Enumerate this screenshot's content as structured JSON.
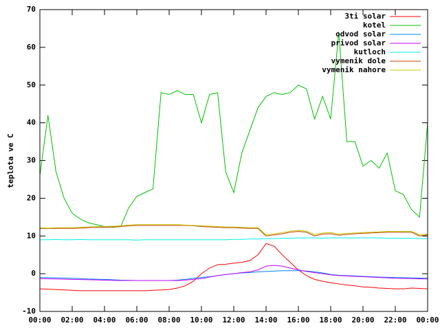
{
  "chart_data": {
    "type": "line",
    "y_label": "teplota ve C",
    "legend": "top-right",
    "grid": false,
    "xlim": [
      0,
      24
    ],
    "xticks": [
      {
        "value": 0,
        "label": "00:00"
      },
      {
        "value": 2,
        "label": "02:00"
      },
      {
        "value": 4,
        "label": "04:00"
      },
      {
        "value": 6,
        "label": "06:00"
      },
      {
        "value": 8,
        "label": "08:00"
      },
      {
        "value": 10,
        "label": "10:00"
      },
      {
        "value": 12,
        "label": "12:00"
      },
      {
        "value": 14,
        "label": "14:00"
      },
      {
        "value": 16,
        "label": "16:00"
      },
      {
        "value": 18,
        "label": "18:00"
      },
      {
        "value": 20,
        "label": "20:00"
      },
      {
        "value": 22,
        "label": "22:00"
      },
      {
        "value": 24,
        "label": "00:00"
      }
    ],
    "ylim": [
      -10,
      70
    ],
    "yticks": [
      -10,
      0,
      10,
      20,
      30,
      40,
      50,
      60,
      70
    ],
    "x": [
      0,
      0.5,
      1,
      1.5,
      2,
      2.5,
      3,
      3.5,
      4,
      4.5,
      5,
      5.5,
      6,
      6.5,
      7,
      7.5,
      8,
      8.5,
      9,
      9.5,
      10,
      10.5,
      11,
      11.5,
      12,
      12.5,
      13,
      13.5,
      14,
      14.5,
      15,
      15.5,
      16,
      16.5,
      17,
      17.5,
      18,
      18.5,
      19,
      19.5,
      20,
      20.5,
      21,
      21.5,
      22,
      22.5,
      23,
      23.5,
      24
    ],
    "series": [
      {
        "name": "3ti solar",
        "color": "#ff0000",
        "values": [
          -4,
          -4.1,
          -4.2,
          -4.3,
          -4.4,
          -4.5,
          -4.5,
          -4.5,
          -4.5,
          -4.5,
          -4.5,
          -4.5,
          -4.5,
          -4.5,
          -4.4,
          -4.3,
          -4.2,
          -3.8,
          -3.2,
          -2,
          0,
          1.5,
          2.4,
          2.5,
          2.8,
          3,
          3.5,
          5,
          8,
          7.3,
          5,
          3,
          1,
          -0.5,
          -1.5,
          -2,
          -2.4,
          -2.7,
          -3,
          -3.2,
          -3.5,
          -3.6,
          -3.8,
          -3.9,
          -4,
          -4,
          -3.8,
          -3.9,
          -4
        ]
      },
      {
        "name": "kotel",
        "color": "#00c000",
        "values": [
          26,
          42,
          27,
          20,
          16,
          14.5,
          13.5,
          13,
          12.5,
          12.3,
          12.5,
          17.5,
          20.5,
          21.5,
          22.5,
          48,
          47.5,
          48.5,
          47.5,
          47.5,
          40,
          47.5,
          48,
          27,
          21.5,
          32,
          38,
          44,
          47,
          48,
          47.5,
          48,
          50,
          49,
          41,
          47,
          41,
          64,
          35,
          35,
          28.5,
          30,
          28,
          32,
          22,
          21,
          17,
          15,
          40
        ]
      },
      {
        "name": "odvod solar",
        "color": "#0080ff",
        "values": [
          -1,
          -1.05,
          -1.1,
          -1.15,
          -1.2,
          -1.3,
          -1.4,
          -1.45,
          -1.5,
          -1.6,
          -1.7,
          -1.75,
          -1.8,
          -1.8,
          -1.8,
          -1.8,
          -1.8,
          -1.7,
          -1.5,
          -1.2,
          -1,
          -0.8,
          -0.5,
          -0.2,
          0,
          0.2,
          0.3,
          0.5,
          0.6,
          0.7,
          0.8,
          0.8,
          0.8,
          0.7,
          0.5,
          0.2,
          -0.2,
          -0.4,
          -0.5,
          -0.6,
          -0.7,
          -0.8,
          -0.9,
          -0.95,
          -1,
          -1.05,
          -1.1,
          -1.15,
          -1.2
        ]
      },
      {
        "name": "privod solar",
        "color": "#c000ff",
        "values": [
          -1.3,
          -1.35,
          -1.4,
          -1.45,
          -1.5,
          -1.55,
          -1.6,
          -1.65,
          -1.7,
          -1.75,
          -1.8,
          -1.8,
          -1.8,
          -1.8,
          -1.8,
          -1.8,
          -1.8,
          -1.8,
          -1.7,
          -1.5,
          -1.3,
          -0.9,
          -0.5,
          -0.2,
          0,
          0.3,
          0.5,
          1,
          2,
          2.2,
          2,
          1.5,
          1,
          0.6,
          0.3,
          0,
          -0.3,
          -0.5,
          -0.6,
          -0.7,
          -0.8,
          -0.9,
          -1,
          -1.1,
          -1.2,
          -1.25,
          -1.3,
          -1.35,
          -1.4
        ]
      },
      {
        "name": "kutloch",
        "color": "#00eeee",
        "values": [
          9,
          9,
          9.1,
          9,
          9,
          9.1,
          9,
          9,
          9,
          9,
          9,
          9,
          8.9,
          9,
          9,
          9,
          9,
          9,
          9,
          9,
          9,
          9,
          9,
          9,
          9.1,
          9.1,
          9.2,
          9.2,
          9.3,
          9.3,
          9.4,
          9.4,
          9.5,
          9.5,
          9.5,
          9.4,
          9.5,
          9.5,
          9.5,
          9.5,
          9.5,
          9.5,
          9.5,
          9.4,
          9.4,
          9.4,
          9.4,
          9.3,
          9.3
        ]
      },
      {
        "name": "vymenik dole",
        "color": "#c04000",
        "values": [
          12,
          12,
          12,
          12,
          12,
          12.1,
          12.2,
          12.3,
          12.3,
          12.4,
          12.5,
          12.7,
          12.8,
          12.8,
          12.8,
          12.8,
          12.8,
          12.8,
          12.8,
          12.7,
          12.5,
          12.4,
          12.3,
          12.2,
          12.2,
          12.1,
          12,
          12,
          10,
          10.3,
          10.6,
          11,
          11.2,
          11,
          10,
          10.5,
          10.6,
          10.2,
          10.4,
          10.6,
          10.7,
          10.8,
          10.9,
          11,
          11,
          11,
          11,
          10,
          10.3
        ]
      },
      {
        "name": "vymenik nahore",
        "color": "#c8c800",
        "values": [
          12.2,
          12.1,
          12.2,
          12.2,
          12.2,
          12.3,
          12.4,
          12.5,
          12.5,
          12.6,
          12.7,
          12.9,
          13,
          13,
          13,
          13,
          13,
          13,
          12.9,
          12.8,
          12.7,
          12.6,
          12.5,
          12.4,
          12.4,
          12.3,
          12.2,
          12.2,
          10.3,
          10.6,
          10.9,
          11.3,
          11.5,
          11.3,
          10.4,
          10.8,
          10.9,
          10.5,
          10.7,
          10.8,
          10.9,
          11,
          11.1,
          11.2,
          11.2,
          11.2,
          11.2,
          10.3,
          10.5
        ]
      }
    ]
  }
}
